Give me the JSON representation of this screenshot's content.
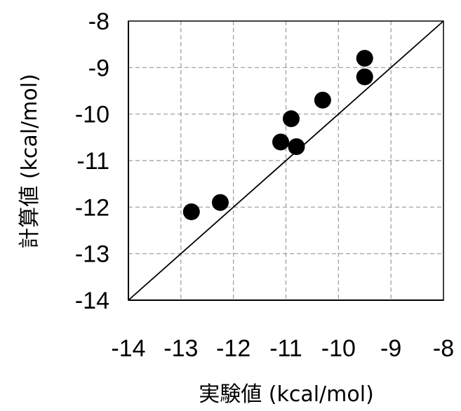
{
  "chart_data": {
    "type": "scatter",
    "xlabel": "実験値 (kcal/mol)",
    "ylabel": "計算値 (kcal/mol)",
    "xlim": [
      -14,
      -8
    ],
    "ylim": [
      -14,
      -8
    ],
    "xticks": [
      -14,
      -13,
      -12,
      -11,
      -10,
      -9,
      -8
    ],
    "yticks": [
      -14,
      -13,
      -12,
      -11,
      -10,
      -9,
      -8
    ],
    "grid": true,
    "identity_line": true,
    "points": [
      {
        "x": -12.8,
        "y": -12.1
      },
      {
        "x": -12.25,
        "y": -11.9
      },
      {
        "x": -11.1,
        "y": -10.6
      },
      {
        "x": -10.9,
        "y": -10.1
      },
      {
        "x": -10.8,
        "y": -10.7
      },
      {
        "x": -10.3,
        "y": -9.7
      },
      {
        "x": -9.5,
        "y": -8.8
      },
      {
        "x": -9.5,
        "y": -9.2
      }
    ]
  }
}
